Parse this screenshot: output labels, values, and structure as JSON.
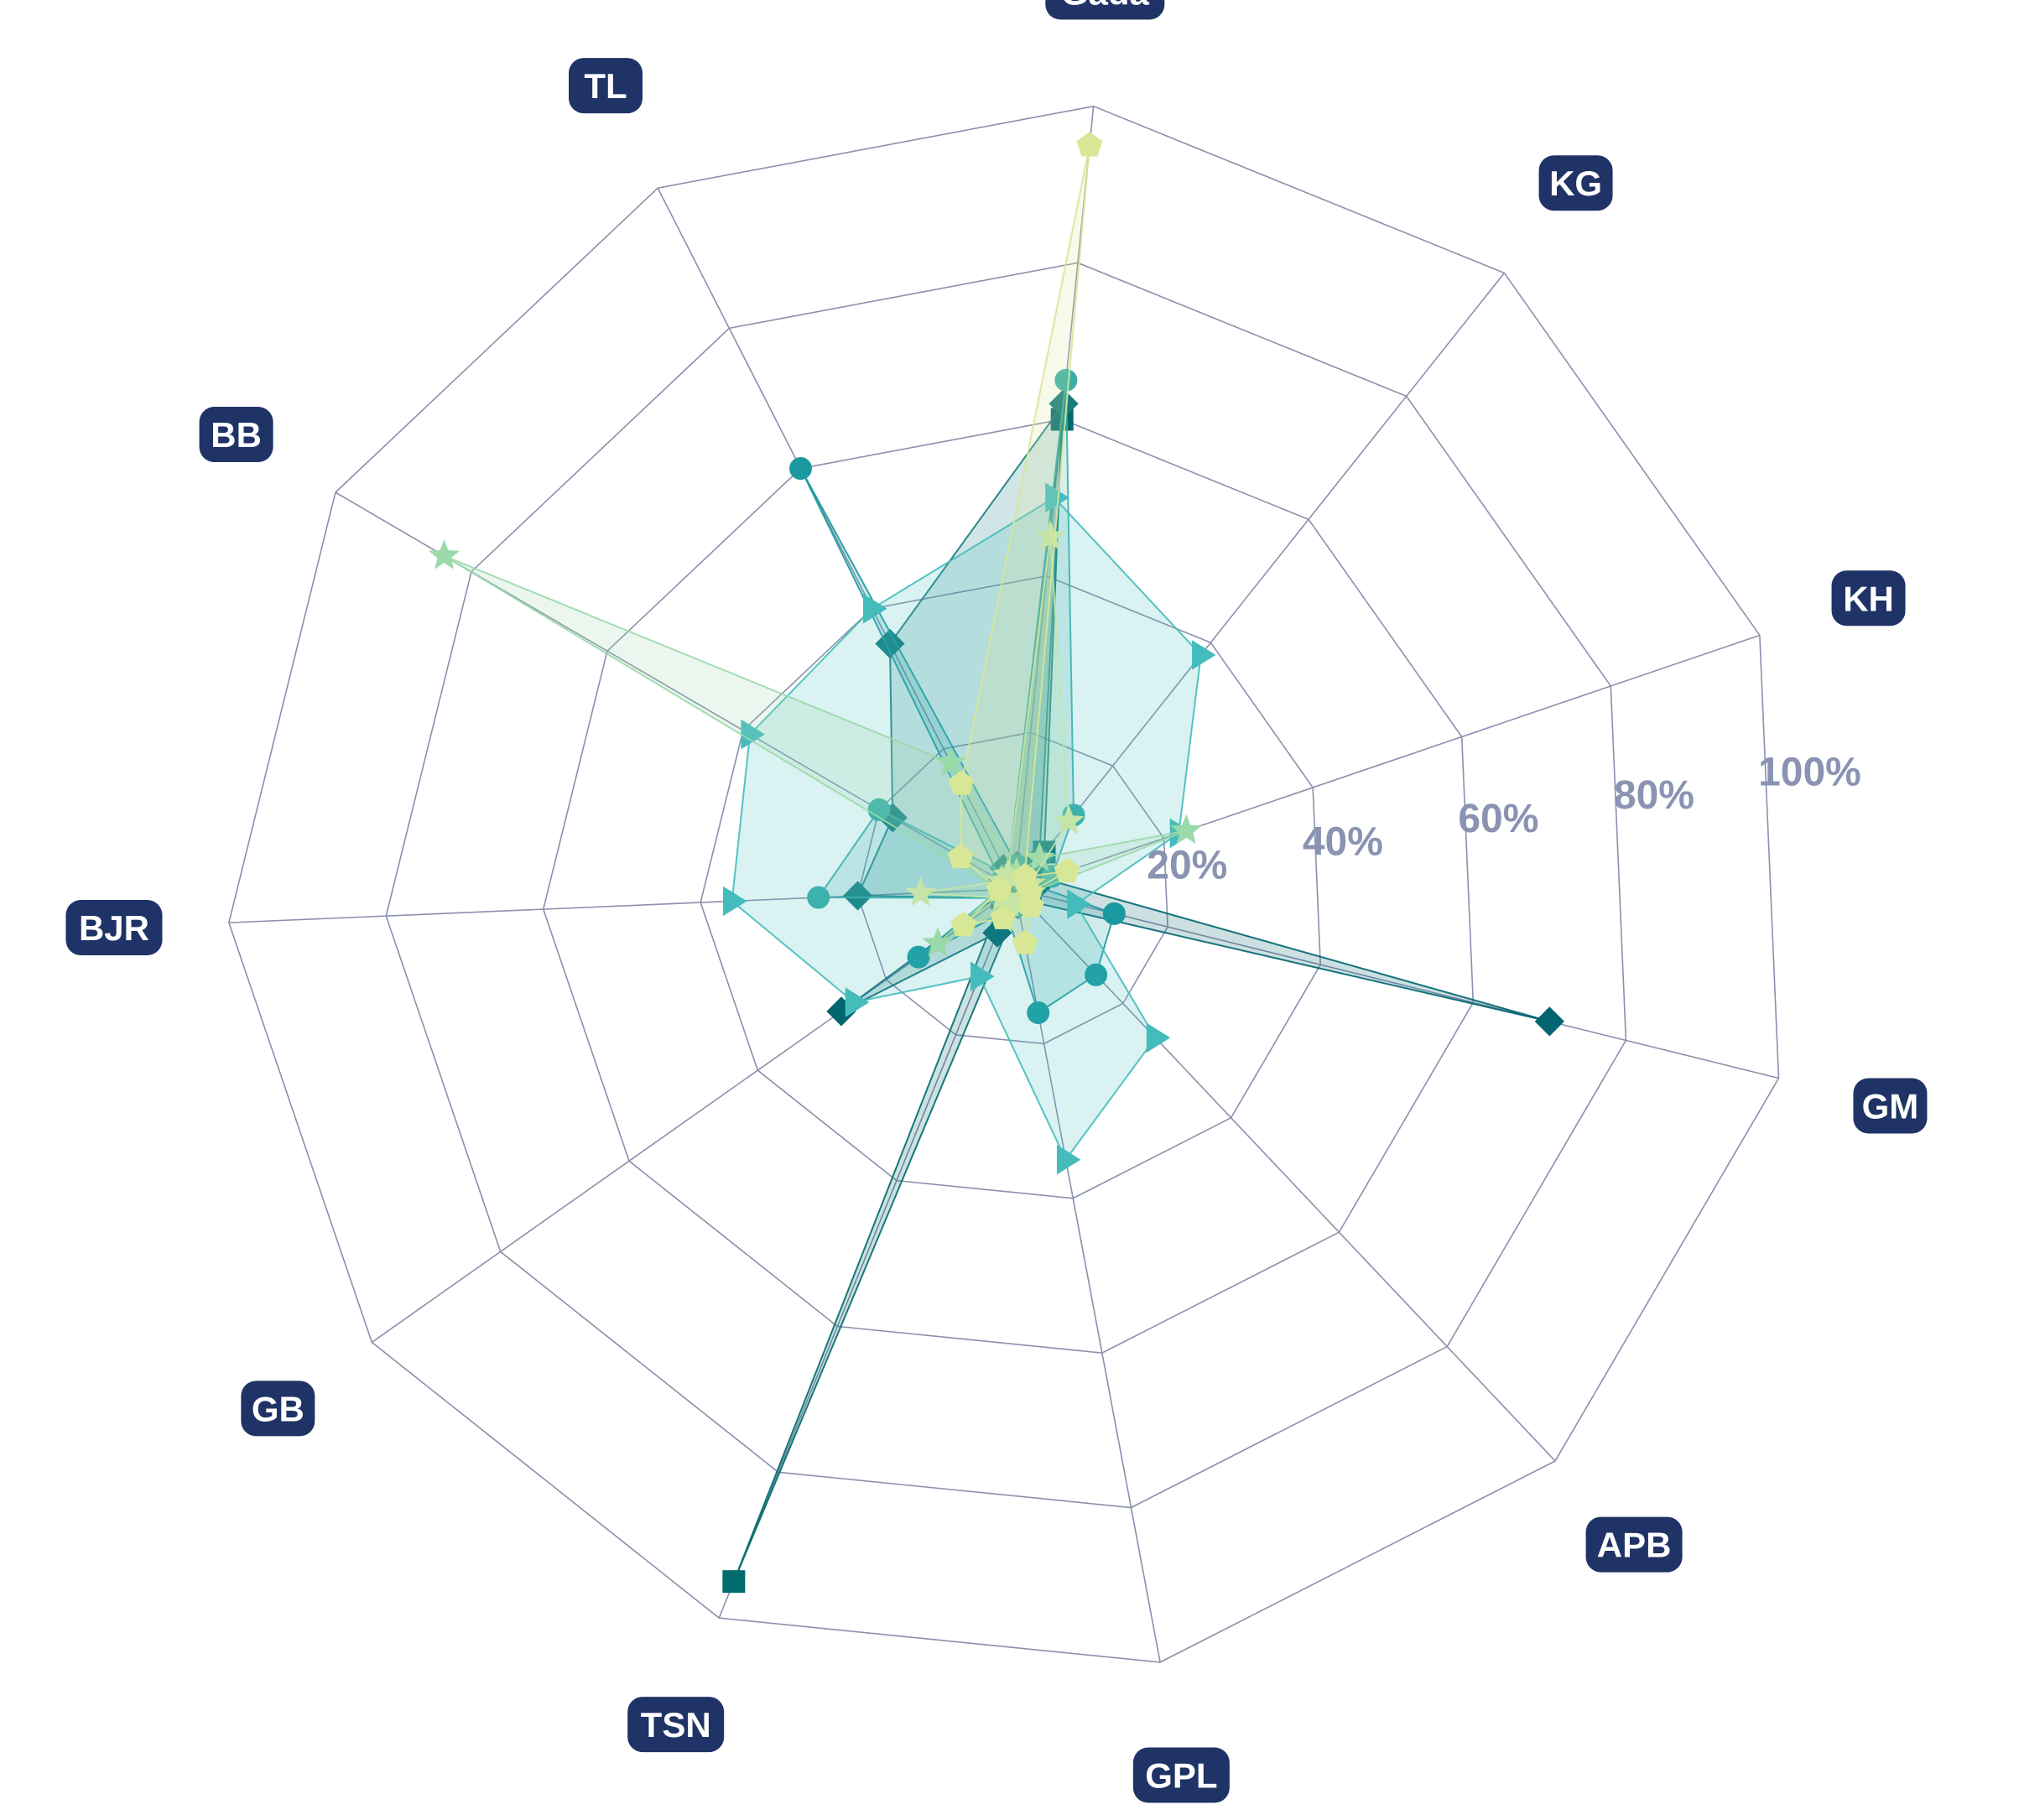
{
  "chart_data": {
    "type": "radar",
    "categories": [
      "Gada",
      "KG",
      "KH",
      "GM",
      "APB",
      "GPL",
      "TSN",
      "GB",
      "BJR",
      "BB",
      "TL"
    ],
    "radial_ticks": [
      "20%",
      "40%",
      "60%",
      "80%",
      "100%"
    ],
    "rlim": [
      0,
      100
    ],
    "grid": true,
    "legend": "none",
    "series": [
      {
        "marker": "diamond",
        "color": "#00656f",
        "values": [
          3,
          2,
          4,
          70,
          2,
          2,
          6,
          27,
          1,
          2,
          3
        ]
      },
      {
        "marker": "square",
        "color": "#006a6c",
        "values": [
          60,
          6,
          2,
          2,
          2,
          2,
          95,
          2,
          1,
          1,
          2
        ]
      },
      {
        "marker": "diamond",
        "color": "#177c80",
        "values": [
          62,
          5,
          2,
          2,
          2,
          2,
          2,
          2,
          20,
          18,
          35
        ]
      },
      {
        "marker": "circle",
        "color": "#1a9aa0",
        "values": [
          3,
          2,
          2,
          13,
          15,
          16,
          3,
          15,
          2,
          2,
          60
        ]
      },
      {
        "marker": "circle",
        "color": "#3aafa8",
        "values": [
          65,
          12,
          5,
          2,
          2,
          2,
          2,
          2,
          25,
          20,
          2
        ]
      },
      {
        "marker": "triangle",
        "color": "#44bcbc",
        "values": [
          50,
          38,
          22,
          8,
          26,
          35,
          12,
          25,
          36,
          39,
          40
        ]
      },
      {
        "marker": "star",
        "color": "#9ad9a8",
        "values": [
          2,
          5,
          23,
          2,
          2,
          2,
          2,
          12,
          2,
          84,
          18
        ]
      },
      {
        "marker": "star",
        "color": "#c4e4a8",
        "values": [
          45,
          11,
          2,
          2,
          2,
          2,
          2,
          2,
          12,
          2,
          2
        ]
      },
      {
        "marker": "pentagon",
        "color": "#d8e796",
        "values": [
          95,
          2,
          7,
          2,
          3,
          7,
          4,
          8,
          2,
          8,
          15
        ]
      }
    ]
  }
}
